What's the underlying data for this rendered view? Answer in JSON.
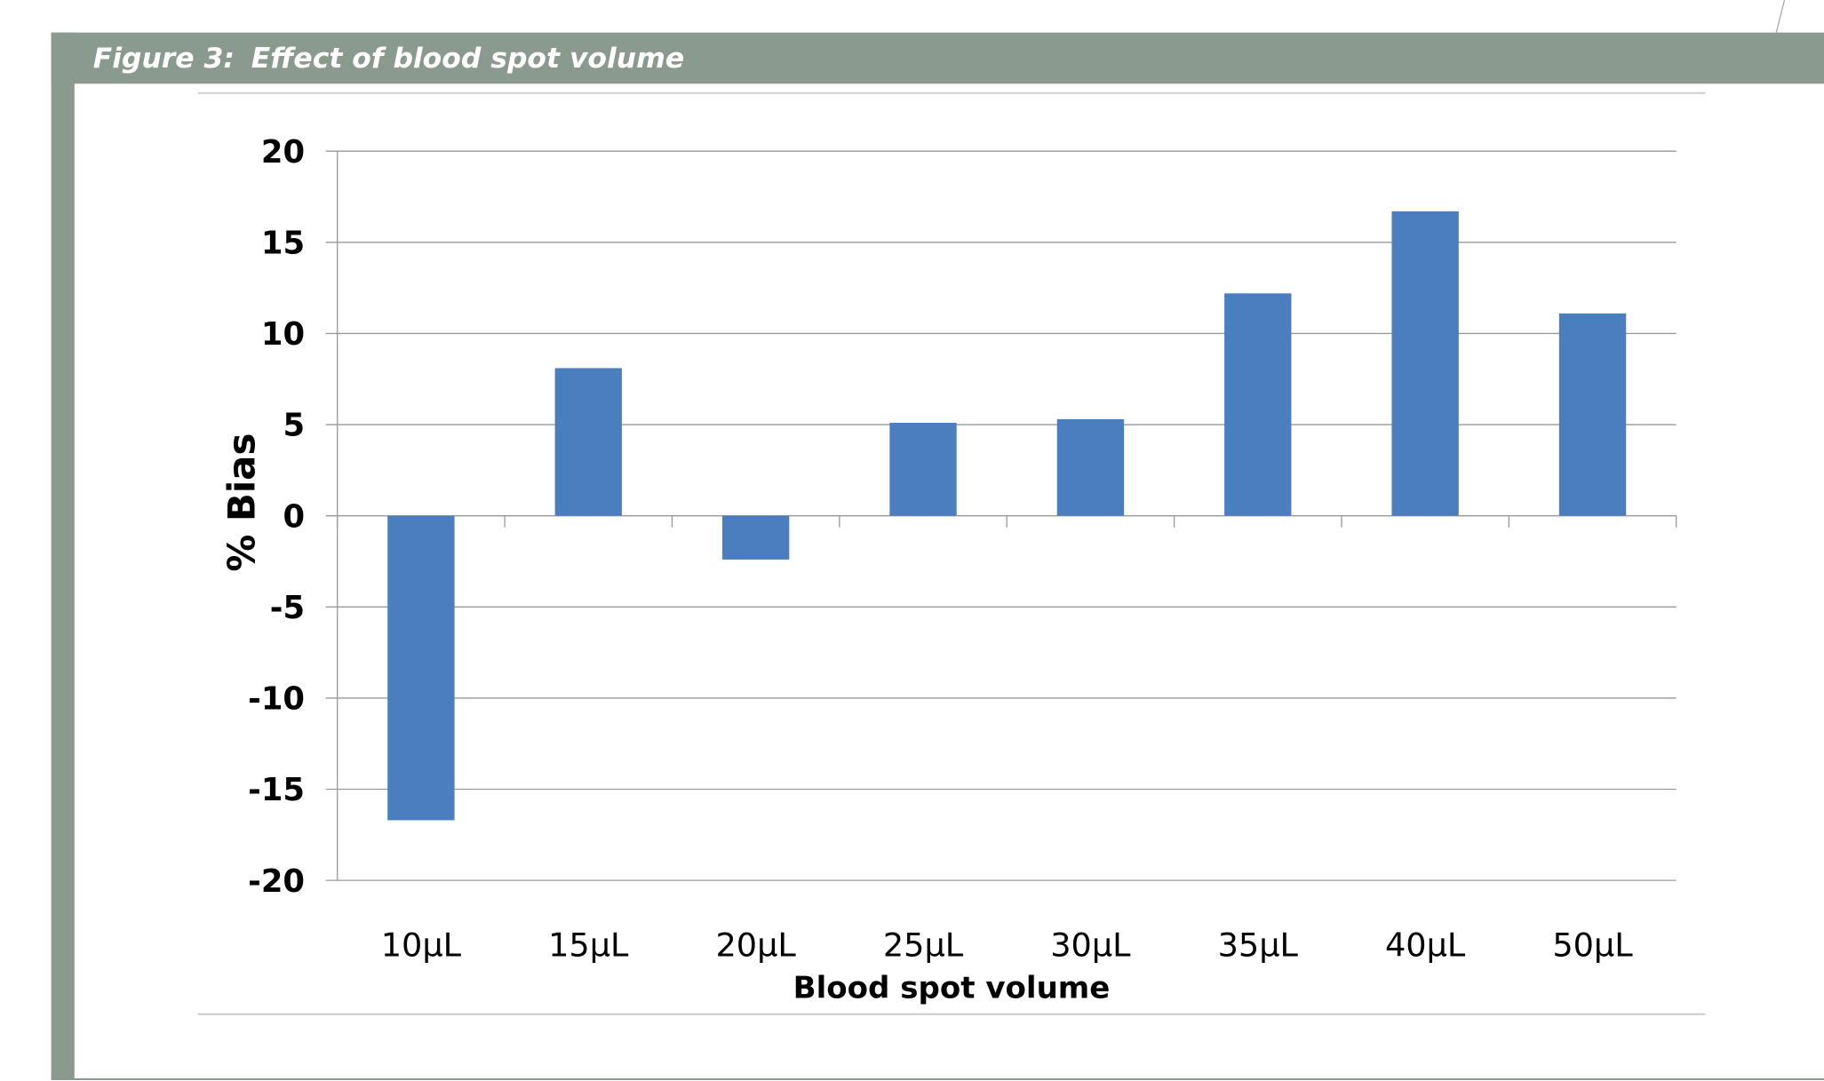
{
  "chart_data": {
    "type": "bar",
    "figure_label": "Figure 3:",
    "title": "Effect of blood spot volume",
    "x_label": "Blood spot volume",
    "y_label": "% Bias",
    "categories": [
      "10µL",
      "15µL",
      "20µL",
      "25µL",
      "30µL",
      "35µL",
      "40µL",
      "50µL"
    ],
    "values": [
      -16.7,
      8.1,
      -2.4,
      5.1,
      5.3,
      12.2,
      16.7,
      11.1
    ],
    "color": "#4a7ebf",
    "ylim": [
      -20,
      20
    ],
    "yticks": [
      -20,
      -15,
      -10,
      -5,
      0,
      5,
      10,
      15,
      20
    ],
    "grid": true
  }
}
